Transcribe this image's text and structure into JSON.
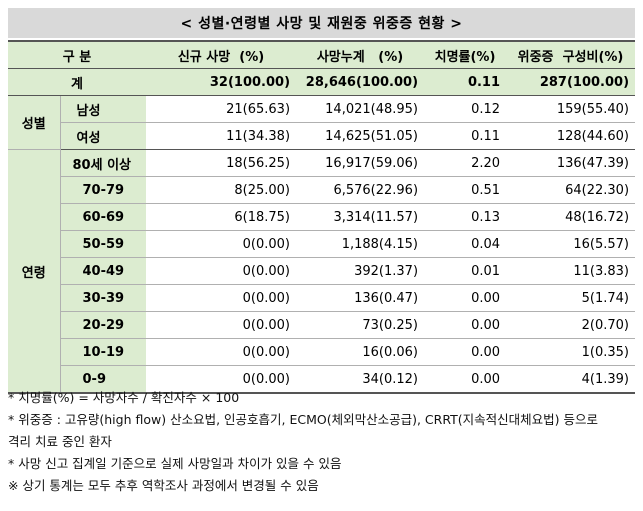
{
  "title": "< 성별·연령별 사망 및 재원중 위중증 현황 >",
  "headers": [
    "구 분",
    "신규 사망  (%)",
    "사망누계   (%)",
    "치명률(%)",
    "위중증  구성비(%)"
  ],
  "total": {
    "label": "계",
    "cells": [
      "32(100.00)",
      "28,646(100.00)",
      "0.11",
      "287(100.00)"
    ]
  },
  "gender": {
    "label": "성별",
    "rows": [
      {
        "label": "남성",
        "cells": [
          "21(65.63)",
          "14,021(48.95)",
          "0.12",
          "159(55.40)"
        ]
      },
      {
        "label": "여성",
        "cells": [
          "11(34.38)",
          "14,625(51.05)",
          "0.11",
          "128(44.60)"
        ]
      }
    ]
  },
  "age": {
    "label": "연령",
    "rows": [
      {
        "label": "80세 이상",
        "cells": [
          "18(56.25)",
          "16,917(59.06)",
          "2.20",
          "136(47.39)"
        ]
      },
      {
        "label": "70-79",
        "cells": [
          "8(25.00)",
          "6,576(22.96)",
          "0.51",
          "64(22.30)"
        ]
      },
      {
        "label": "60-69",
        "cells": [
          "6(18.75)",
          "3,314(11.57)",
          "0.13",
          "48(16.72)"
        ]
      },
      {
        "label": "50-59",
        "cells": [
          "0(0.00)",
          "1,188(4.15)",
          "0.04",
          "16(5.57)"
        ]
      },
      {
        "label": "40-49",
        "cells": [
          "0(0.00)",
          "392(1.37)",
          "0.01",
          "11(3.83)"
        ]
      },
      {
        "label": "30-39",
        "cells": [
          "0(0.00)",
          "136(0.47)",
          "0.00",
          "5(1.74)"
        ]
      },
      {
        "label": "20-29",
        "cells": [
          "0(0.00)",
          "73(0.25)",
          "0.00",
          "2(0.70)"
        ]
      },
      {
        "label": "10-19",
        "cells": [
          "0(0.00)",
          "16(0.06)",
          "0.00",
          "1(0.35)"
        ]
      },
      {
        "label": "0-9",
        "cells": [
          "0(0.00)",
          "34(0.12)",
          "0.00",
          "4(1.39)"
        ]
      }
    ]
  },
  "notes": [
    "* 치명률(%) = 사망자수 / 확진자수 × 100",
    "* 위중증 : 고유량(high flow) 산소요법, 인공호흡기, ECMO(체외막산소공급), CRRT(지속적신대체요법) 등으로",
    "격리 치료 중인 환자",
    "* 사망 신고 집계일 기준으로 실제 사망일과 차이가 있을 수 있음",
    "※ 상기 통계는 모두 추후 역학조사 과정에서 변경될 수 있음"
  ]
}
